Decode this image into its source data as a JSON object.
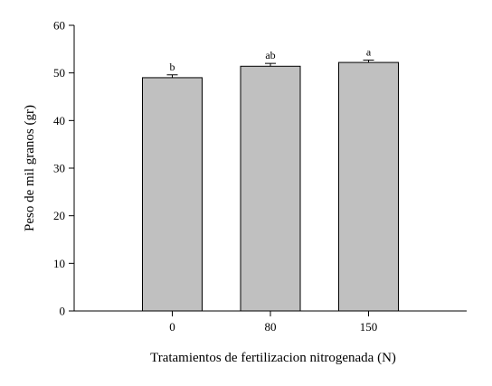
{
  "chart_data": {
    "type": "bar",
    "categories": [
      "0",
      "80",
      "150"
    ],
    "values": [
      49.0,
      51.4,
      52.2
    ],
    "error": [
      0.6,
      0.6,
      0.5
    ],
    "significance_letters": [
      "b",
      "ab",
      "a"
    ],
    "xlabel": "Tratamientos de fertilizacion nitrogenada (N)",
    "ylabel": "Peso de mil granos (gr)",
    "ylim": [
      0,
      60
    ],
    "yticks": [
      "0",
      "10",
      "20",
      "30",
      "40",
      "50",
      "60"
    ],
    "grid": false,
    "bar_color": "#c0c0c0",
    "bar_edge_color": "#000000"
  }
}
